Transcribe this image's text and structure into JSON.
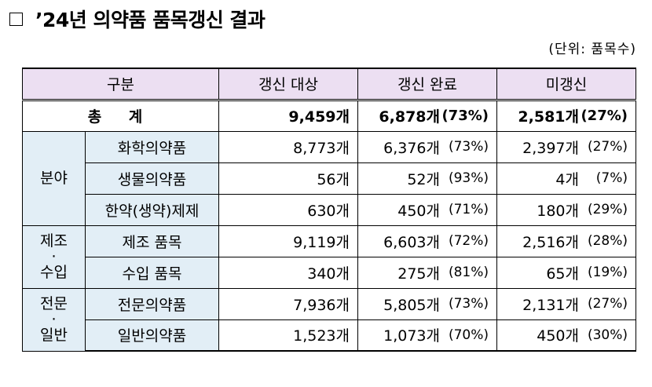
{
  "title": "’24년 의약품 품목갱신 결과",
  "unit": "(단위: 품목수)",
  "headers": [
    "구분",
    "갱신 대상",
    "갱신 완료",
    "미갱신"
  ],
  "total": {
    "label": "총 계",
    "target": "9,459개",
    "done": "6,878개",
    "done_pct": "(73%)",
    "not": "2,581개",
    "not_pct": "(27%)"
  },
  "groups": [
    {
      "category": [
        "분야"
      ],
      "rows": [
        {
          "label": "화학의약품",
          "target": "8,773개",
          "done": "6,376개",
          "done_pct": "(73%)",
          "not": "2,397개",
          "not_pct": "(27%)"
        },
        {
          "label": "생물의약품",
          "target": "56개",
          "done": "52개",
          "done_pct": "(93%)",
          "not": "4개",
          "not_pct": "(7%)"
        },
        {
          "label": "한약(생약)제제",
          "target": "630개",
          "done": "450개",
          "done_pct": "(71%)",
          "not": "180개",
          "not_pct": "(29%)"
        }
      ]
    },
    {
      "category": [
        "제조",
        "·",
        "수입"
      ],
      "rows": [
        {
          "label": "제조 품목",
          "target": "9,119개",
          "done": "6,603개",
          "done_pct": "(72%)",
          "not": "2,516개",
          "not_pct": "(28%)"
        },
        {
          "label": "수입 품목",
          "target": "340개",
          "done": "275개",
          "done_pct": "(81%)",
          "not": "65개",
          "not_pct": "(19%)"
        }
      ]
    },
    {
      "category": [
        "전문",
        "·",
        "일반"
      ],
      "rows": [
        {
          "label": "전문의약품",
          "target": "7,936개",
          "done": "5,805개",
          "done_pct": "(73%)",
          "not": "2,131개",
          "not_pct": "(27%)"
        },
        {
          "label": "일반의약품",
          "target": "1,523개",
          "done": "1,073개",
          "done_pct": "(70%)",
          "not": "450개",
          "not_pct": "(30%)"
        }
      ]
    }
  ]
}
